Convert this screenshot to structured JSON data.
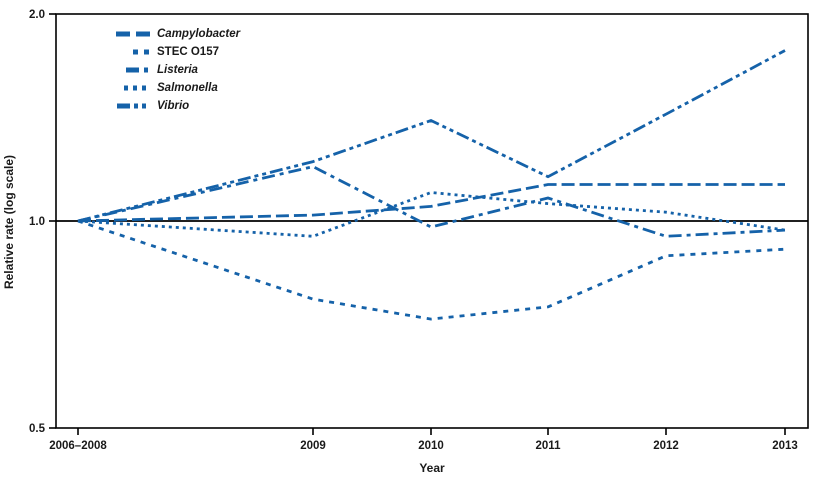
{
  "figure": {
    "y_axis": {
      "label": "Relative rate (log scale)",
      "tick_labels": [
        "2.0",
        "1.0",
        "0.5"
      ],
      "tick_values": [
        2.0,
        1.0,
        0.5
      ]
    },
    "x_axis": {
      "label": "Year",
      "tick_labels": [
        "2006–2008",
        "2009",
        "2010",
        "2011",
        "2012",
        "2013"
      ]
    }
  },
  "chart_data": {
    "type": "line",
    "x_categories": [
      "2006–2008",
      "2009",
      "2010",
      "2011",
      "2012",
      "2013"
    ],
    "xlabel": "Year",
    "ylabel": "Relative rate (log scale)",
    "y_scale": "log",
    "ylim": [
      0.5,
      2.0
    ],
    "y_ticks": [
      2.0,
      1.0,
      0.5
    ],
    "reference_line_y": 1.0,
    "grid": false,
    "legend_position": "top-left-inside",
    "frame": "full-box",
    "series": [
      {
        "name": "Campylobacter",
        "italic": true,
        "line_style": "long-dash",
        "values": [
          1.0,
          1.02,
          1.05,
          1.13,
          1.13,
          1.13
        ]
      },
      {
        "name": "STEC O157",
        "italic": false,
        "line_style": "dash",
        "values": [
          1.0,
          0.77,
          0.72,
          0.75,
          0.89,
          0.91
        ]
      },
      {
        "name": "Listeria",
        "italic": true,
        "line_style": "dash-dot",
        "values": [
          1.0,
          1.2,
          0.98,
          1.08,
          0.95,
          0.97
        ]
      },
      {
        "name": "Salmonella",
        "italic": true,
        "line_style": "dot",
        "values": [
          1.0,
          0.95,
          1.1,
          1.06,
          1.03,
          0.97
        ]
      },
      {
        "name": "Vibrio",
        "italic": true,
        "line_style": "dash-dot-dot",
        "values": [
          1.0,
          1.22,
          1.4,
          1.16,
          1.43,
          1.77
        ]
      }
    ]
  },
  "colors": {
    "series_line": "#1562a9",
    "axis": "#000000",
    "reference_line": "#000000",
    "text": "#1a1a1a",
    "background": "#ffffff"
  }
}
